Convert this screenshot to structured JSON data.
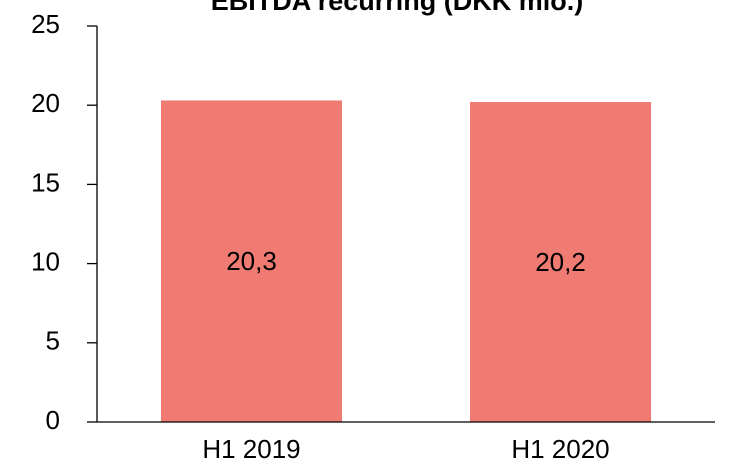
{
  "chart_data": {
    "type": "bar",
    "title": "EBITDA recurring (DKK mio.)",
    "categories": [
      "H1 2019",
      "H1 2020"
    ],
    "values": [
      20.3,
      20.2
    ],
    "value_labels": [
      "20,3",
      "20,2"
    ],
    "color": "#f07b72",
    "ylim": [
      0,
      25
    ],
    "yticks": [
      0,
      5,
      10,
      15,
      20,
      25
    ],
    "grid": false
  }
}
